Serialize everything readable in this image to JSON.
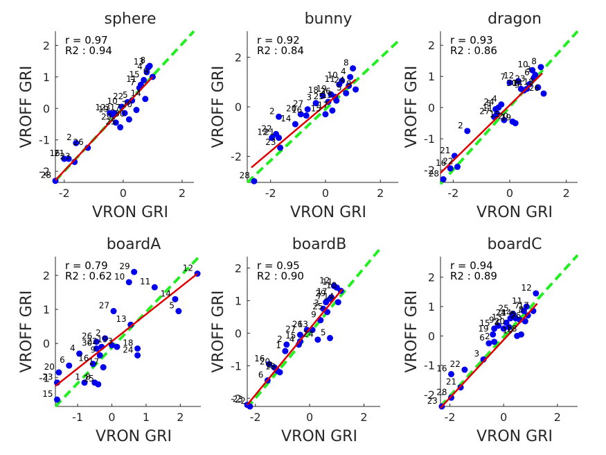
{
  "colors": {
    "points": "#0000ee",
    "fit": "#e00000",
    "identity": "#22ee22",
    "axis": "#262626",
    "text": "#000000"
  },
  "chart_data": [
    {
      "type": "scatter",
      "title": "sphere",
      "xlabel": "VRON GRI",
      "ylabel": "VROFF GRI",
      "xlim": [
        -2.3,
        2.4
      ],
      "ylim": [
        -2.35,
        2.45
      ],
      "xticks": [
        "-2",
        "0",
        "2"
      ],
      "yticks": [
        "-2",
        "-1",
        "0",
        "1",
        "2"
      ],
      "xtick_values": [
        -2,
        0,
        2
      ],
      "ytick_values": [
        -2,
        -1,
        0,
        1,
        2
      ],
      "r_text": "r = 0.97",
      "r2_text": "R2 : 0.94",
      "fit": [
        [
          -2.3,
          -2.28
        ],
        [
          1.0,
          1.0
        ]
      ],
      "identity": [
        [
          -2.3,
          -2.3
        ],
        [
          2.4,
          2.45
        ]
      ],
      "points": [
        [
          -2.3,
          -2.3,
          "28"
        ],
        [
          -2.0,
          -1.6,
          "16"
        ],
        [
          -1.85,
          -1.6,
          "21"
        ],
        [
          -1.65,
          -1.7,
          "23"
        ],
        [
          -1.6,
          -1.1,
          "2"
        ],
        [
          -1.2,
          -1.25,
          "26"
        ],
        [
          -0.45,
          -0.15,
          "12"
        ],
        [
          -0.35,
          -0.2,
          "19"
        ],
        [
          -0.3,
          -0.15,
          "3"
        ],
        [
          -0.25,
          -0.45,
          "29"
        ],
        [
          -0.1,
          -0.6,
          "25"
        ],
        [
          0.05,
          -0.15,
          "17"
        ],
        [
          0.15,
          0.2,
          "22"
        ],
        [
          0.3,
          0.25,
          "5"
        ],
        [
          0.45,
          -0.05,
          "20"
        ],
        [
          0.6,
          0.75,
          "11"
        ],
        [
          0.7,
          0.9,
          "15"
        ],
        [
          0.8,
          1.15,
          "4"
        ],
        [
          0.85,
          1.3,
          "13"
        ],
        [
          0.9,
          1.35,
          "8"
        ],
        [
          1.0,
          1.0,
          "9"
        ],
        [
          0.75,
          0.3,
          "14"
        ],
        [
          0.2,
          -0.35,
          "30"
        ],
        [
          -0.05,
          0.05,
          "10"
        ],
        [
          0.55,
          0.65,
          "7"
        ]
      ]
    },
    {
      "type": "scatter",
      "title": "bunny",
      "xlabel": "VRON GRI",
      "ylabel": "VROFF GRI",
      "xlim": [
        -2.85,
        2.65
      ],
      "ylim": [
        -3.05,
        3.05
      ],
      "xticks": [
        "-2",
        "0",
        "2"
      ],
      "yticks": [
        "-2",
        "0",
        "2"
      ],
      "xtick_values": [
        -2,
        0,
        2
      ],
      "ytick_values": [
        -2,
        0,
        2
      ],
      "r_text": "r = 0.92",
      "r2_text": "R2 : 0.84",
      "fit": [
        [
          -2.7,
          -2.45
        ],
        [
          1.1,
          1.1
        ]
      ],
      "identity": [
        [
          -2.85,
          -3.05
        ],
        [
          2.65,
          2.65
        ]
      ],
      "points": [
        [
          -2.6,
          -3.0,
          "28"
        ],
        [
          -1.95,
          -1.25,
          "12"
        ],
        [
          -1.8,
          -1.1,
          "22"
        ],
        [
          -1.7,
          -1.25,
          "21"
        ],
        [
          -1.65,
          -1.65,
          "23"
        ],
        [
          -1.7,
          -0.4,
          "2"
        ],
        [
          -1.1,
          -0.7,
          "14"
        ],
        [
          -0.7,
          -0.35,
          "16"
        ],
        [
          -0.9,
          -0.3,
          "20"
        ],
        [
          -0.65,
          -0.1,
          "27"
        ],
        [
          -0.35,
          0.15,
          "3"
        ],
        [
          -0.1,
          0.45,
          "18"
        ],
        [
          0.1,
          0.2,
          "25"
        ],
        [
          0.25,
          -0.15,
          "17"
        ],
        [
          0.35,
          0.4,
          "26"
        ],
        [
          0.5,
          0.9,
          "11"
        ],
        [
          0.6,
          1.05,
          "10"
        ],
        [
          0.75,
          0.55,
          "5"
        ],
        [
          0.85,
          0.85,
          "24"
        ],
        [
          0.9,
          1.2,
          "4"
        ],
        [
          1.0,
          1.55,
          "8"
        ],
        [
          1.1,
          0.7,
          "9"
        ],
        [
          0.2,
          0.5,
          "19"
        ],
        [
          0.4,
          0.25,
          "13"
        ],
        [
          0.0,
          -0.3,
          "15"
        ]
      ]
    },
    {
      "type": "scatter",
      "title": "dragon",
      "xlabel": "VRON GRI",
      "ylabel": "VROFF GRI",
      "xlim": [
        -2.45,
        2.4
      ],
      "ylim": [
        -2.4,
        2.45
      ],
      "xticks": [
        "-2",
        "0",
        "2"
      ],
      "yticks": [
        "-2",
        "-1",
        "0",
        "1",
        "2"
      ],
      "xtick_values": [
        -2,
        0,
        2
      ],
      "ytick_values": [
        -2,
        -1,
        0,
        1,
        2
      ],
      "r_text": "r = 0.93",
      "r2_text": "R2 : 0.86",
      "fit": [
        [
          -2.45,
          -2.1
        ],
        [
          1.15,
          1.1
        ]
      ],
      "identity": [
        [
          -2.45,
          -2.45
        ],
        [
          2.4,
          2.45
        ]
      ],
      "points": [
        [
          -2.35,
          -2.3,
          "28"
        ],
        [
          -2.1,
          -1.95,
          "16"
        ],
        [
          -1.85,
          -1.9,
          "22"
        ],
        [
          -1.95,
          -1.55,
          "21"
        ],
        [
          -1.5,
          -0.75,
          "2"
        ],
        [
          -0.55,
          -0.3,
          "27"
        ],
        [
          -0.5,
          -0.05,
          "5"
        ],
        [
          -0.45,
          -0.2,
          "11"
        ],
        [
          -0.4,
          0.0,
          "24"
        ],
        [
          -0.3,
          0.1,
          "4"
        ],
        [
          -0.2,
          -0.4,
          "15"
        ],
        [
          0.1,
          -0.45,
          "20"
        ],
        [
          0.2,
          -0.5,
          "19"
        ],
        [
          0.0,
          0.8,
          "7"
        ],
        [
          0.3,
          0.85,
          "12"
        ],
        [
          0.4,
          0.6,
          "30"
        ],
        [
          0.5,
          0.55,
          "9"
        ],
        [
          0.6,
          0.6,
          "14"
        ],
        [
          0.7,
          0.75,
          "23"
        ],
        [
          0.8,
          1.2,
          "10"
        ],
        [
          0.9,
          1.05,
          "3"
        ],
        [
          1.0,
          0.65,
          "18"
        ],
        [
          1.1,
          1.3,
          "8"
        ],
        [
          1.2,
          0.45,
          "26"
        ],
        [
          0.85,
          0.95,
          "6"
        ]
      ]
    },
    {
      "type": "scatter",
      "title": "boardA",
      "xlabel": "VRON GRI",
      "ylabel": "VROFF GRI",
      "xlim": [
        -1.65,
        2.6
      ],
      "ylim": [
        -1.85,
        2.55
      ],
      "xticks": [
        "-1",
        "0",
        "1",
        "2"
      ],
      "yticks": [
        "-1",
        "0",
        "1",
        "2"
      ],
      "xtick_values": [
        -1,
        0,
        1,
        2
      ],
      "ytick_values": [
        -1,
        0,
        1,
        2
      ],
      "r_text": "r = 0.79",
      "r2_text": "R2 : 0.62",
      "fit": [
        [
          -1.65,
          -1.25
        ],
        [
          2.5,
          2.05
        ]
      ],
      "identity": [
        [
          -1.65,
          -1.85
        ],
        [
          2.55,
          2.55
        ]
      ],
      "points": [
        [
          -1.6,
          -1.65,
          "15"
        ],
        [
          -1.6,
          -1.15,
          "23"
        ],
        [
          -1.55,
          -0.85,
          "20"
        ],
        [
          -1.25,
          -0.65,
          "6"
        ],
        [
          -0.95,
          -0.3,
          "4"
        ],
        [
          -0.8,
          -1.15,
          "1"
        ],
        [
          -0.5,
          -1.15,
          "8"
        ],
        [
          -0.55,
          -0.6,
          "16"
        ],
        [
          -0.45,
          -0.15,
          "30"
        ],
        [
          -0.45,
          0.05,
          "26"
        ],
        [
          -0.3,
          -0.1,
          "22"
        ],
        [
          -0.25,
          -0.7,
          "17"
        ],
        [
          -0.2,
          0.15,
          "2"
        ],
        [
          0.0,
          -0.05,
          "19"
        ],
        [
          0.15,
          -0.1,
          "3"
        ],
        [
          0.05,
          0.95,
          "27"
        ],
        [
          0.55,
          0.55,
          "13"
        ],
        [
          0.5,
          1.8,
          "10"
        ],
        [
          0.65,
          2.1,
          "29"
        ],
        [
          1.25,
          1.65,
          "11"
        ],
        [
          0.75,
          -0.15,
          "18"
        ],
        [
          0.75,
          -0.35,
          "24"
        ],
        [
          1.85,
          1.3,
          "14"
        ],
        [
          1.95,
          0.95,
          "5"
        ],
        [
          2.5,
          2.05,
          "12"
        ],
        [
          -0.35,
          -0.35,
          "9"
        ],
        [
          -0.4,
          -1.2,
          "25"
        ]
      ]
    },
    {
      "type": "scatter",
      "title": "boardB",
      "xlabel": "VRON GRI",
      "ylabel": "VROFF GRI",
      "xlim": [
        -2.3,
        2.6
      ],
      "ylim": [
        -2.25,
        2.35
      ],
      "xticks": [
        "-2",
        "0",
        "2"
      ],
      "yticks": [
        "-2",
        "-1",
        "0",
        "1",
        "2"
      ],
      "xtick_values": [
        -2,
        0,
        2
      ],
      "ytick_values": [
        -2,
        -1,
        0,
        1,
        2
      ],
      "r_text": "r = 0.95",
      "r2_text": "R2 : 0.90",
      "fit": [
        [
          -2.3,
          -2.2
        ],
        [
          1.2,
          1.35
        ]
      ],
      "identity": [
        [
          -2.3,
          -2.3
        ],
        [
          2.6,
          2.6
        ]
      ],
      "points": [
        [
          -2.3,
          -2.2,
          "23"
        ],
        [
          -2.2,
          -2.25,
          "2"
        ],
        [
          -1.55,
          -1.45,
          "6"
        ],
        [
          -1.5,
          -0.95,
          "16"
        ],
        [
          -1.3,
          -1.05,
          "20"
        ],
        [
          -1.2,
          -1.15,
          "8"
        ],
        [
          -1.1,
          -1.2,
          "19"
        ],
        [
          -0.9,
          -0.55,
          "1"
        ],
        [
          -0.85,
          -0.35,
          "2"
        ],
        [
          -0.4,
          -0.35,
          "4"
        ],
        [
          -0.35,
          -0.25,
          "15"
        ],
        [
          -0.35,
          -0.05,
          "27"
        ],
        [
          -0.1,
          0.1,
          "26"
        ],
        [
          0.1,
          0.1,
          "13"
        ],
        [
          0.4,
          0.4,
          "9"
        ],
        [
          0.5,
          0.75,
          "3"
        ],
        [
          0.6,
          0.95,
          "7"
        ],
        [
          0.65,
          0.65,
          "25"
        ],
        [
          0.75,
          1.05,
          "29"
        ],
        [
          0.8,
          1.1,
          "17"
        ],
        [
          0.9,
          1.45,
          "12"
        ],
        [
          1.0,
          1.4,
          "11"
        ],
        [
          1.05,
          0.95,
          "14"
        ],
        [
          1.15,
          1.3,
          "10"
        ],
        [
          0.75,
          -0.15,
          "5"
        ],
        [
          0.3,
          -0.2,
          "24"
        ]
      ]
    },
    {
      "type": "scatter",
      "title": "boardC",
      "xlabel": "VRON GRI",
      "ylabel": "VROFF GRI",
      "xlim": [
        -2.35,
        2.75
      ],
      "ylim": [
        -2.4,
        2.7
      ],
      "xticks": [
        "-2",
        "0",
        "2"
      ],
      "yticks": [
        "-2",
        "-1",
        "0",
        "1",
        "2"
      ],
      "xtick_values": [
        -2,
        0,
        2
      ],
      "ytick_values": [
        -2,
        -1,
        0,
        1,
        2
      ],
      "r_text": "r = 0.94",
      "r2_text": "R2 : 0.89",
      "fit": [
        [
          -2.35,
          -2.45
        ],
        [
          1.25,
          1.1
        ]
      ],
      "identity": [
        [
          -2.35,
          -2.4
        ],
        [
          2.75,
          2.75
        ]
      ],
      "points": [
        [
          -2.3,
          -2.4,
          "23"
        ],
        [
          -1.95,
          -2.1,
          "28"
        ],
        [
          -1.95,
          -1.3,
          "16"
        ],
        [
          -1.6,
          -1.75,
          "21"
        ],
        [
          -1.45,
          -1.15,
          "22"
        ],
        [
          -0.75,
          -0.8,
          "3"
        ],
        [
          -0.55,
          -0.25,
          "6"
        ],
        [
          -0.35,
          -0.2,
          "2"
        ],
        [
          -0.4,
          0.05,
          "19"
        ],
        [
          -0.35,
          0.25,
          "15"
        ],
        [
          -0.2,
          0.35,
          "9"
        ],
        [
          0.0,
          0.25,
          "4"
        ],
        [
          0.1,
          0.45,
          "13"
        ],
        [
          0.2,
          0.3,
          "20"
        ],
        [
          0.25,
          0.6,
          "24"
        ],
        [
          0.35,
          0.75,
          "25"
        ],
        [
          0.45,
          0.6,
          "14"
        ],
        [
          0.6,
          0.55,
          "5"
        ],
        [
          0.5,
          0.0,
          "10"
        ],
        [
          0.65,
          0.05,
          "18"
        ],
        [
          0.75,
          0.85,
          "7"
        ],
        [
          0.8,
          0.5,
          "26"
        ],
        [
          0.85,
          1.0,
          "11"
        ],
        [
          1.1,
          0.85,
          "17"
        ],
        [
          1.2,
          1.45,
          "12"
        ],
        [
          0.9,
          0.7,
          "8"
        ]
      ]
    }
  ]
}
